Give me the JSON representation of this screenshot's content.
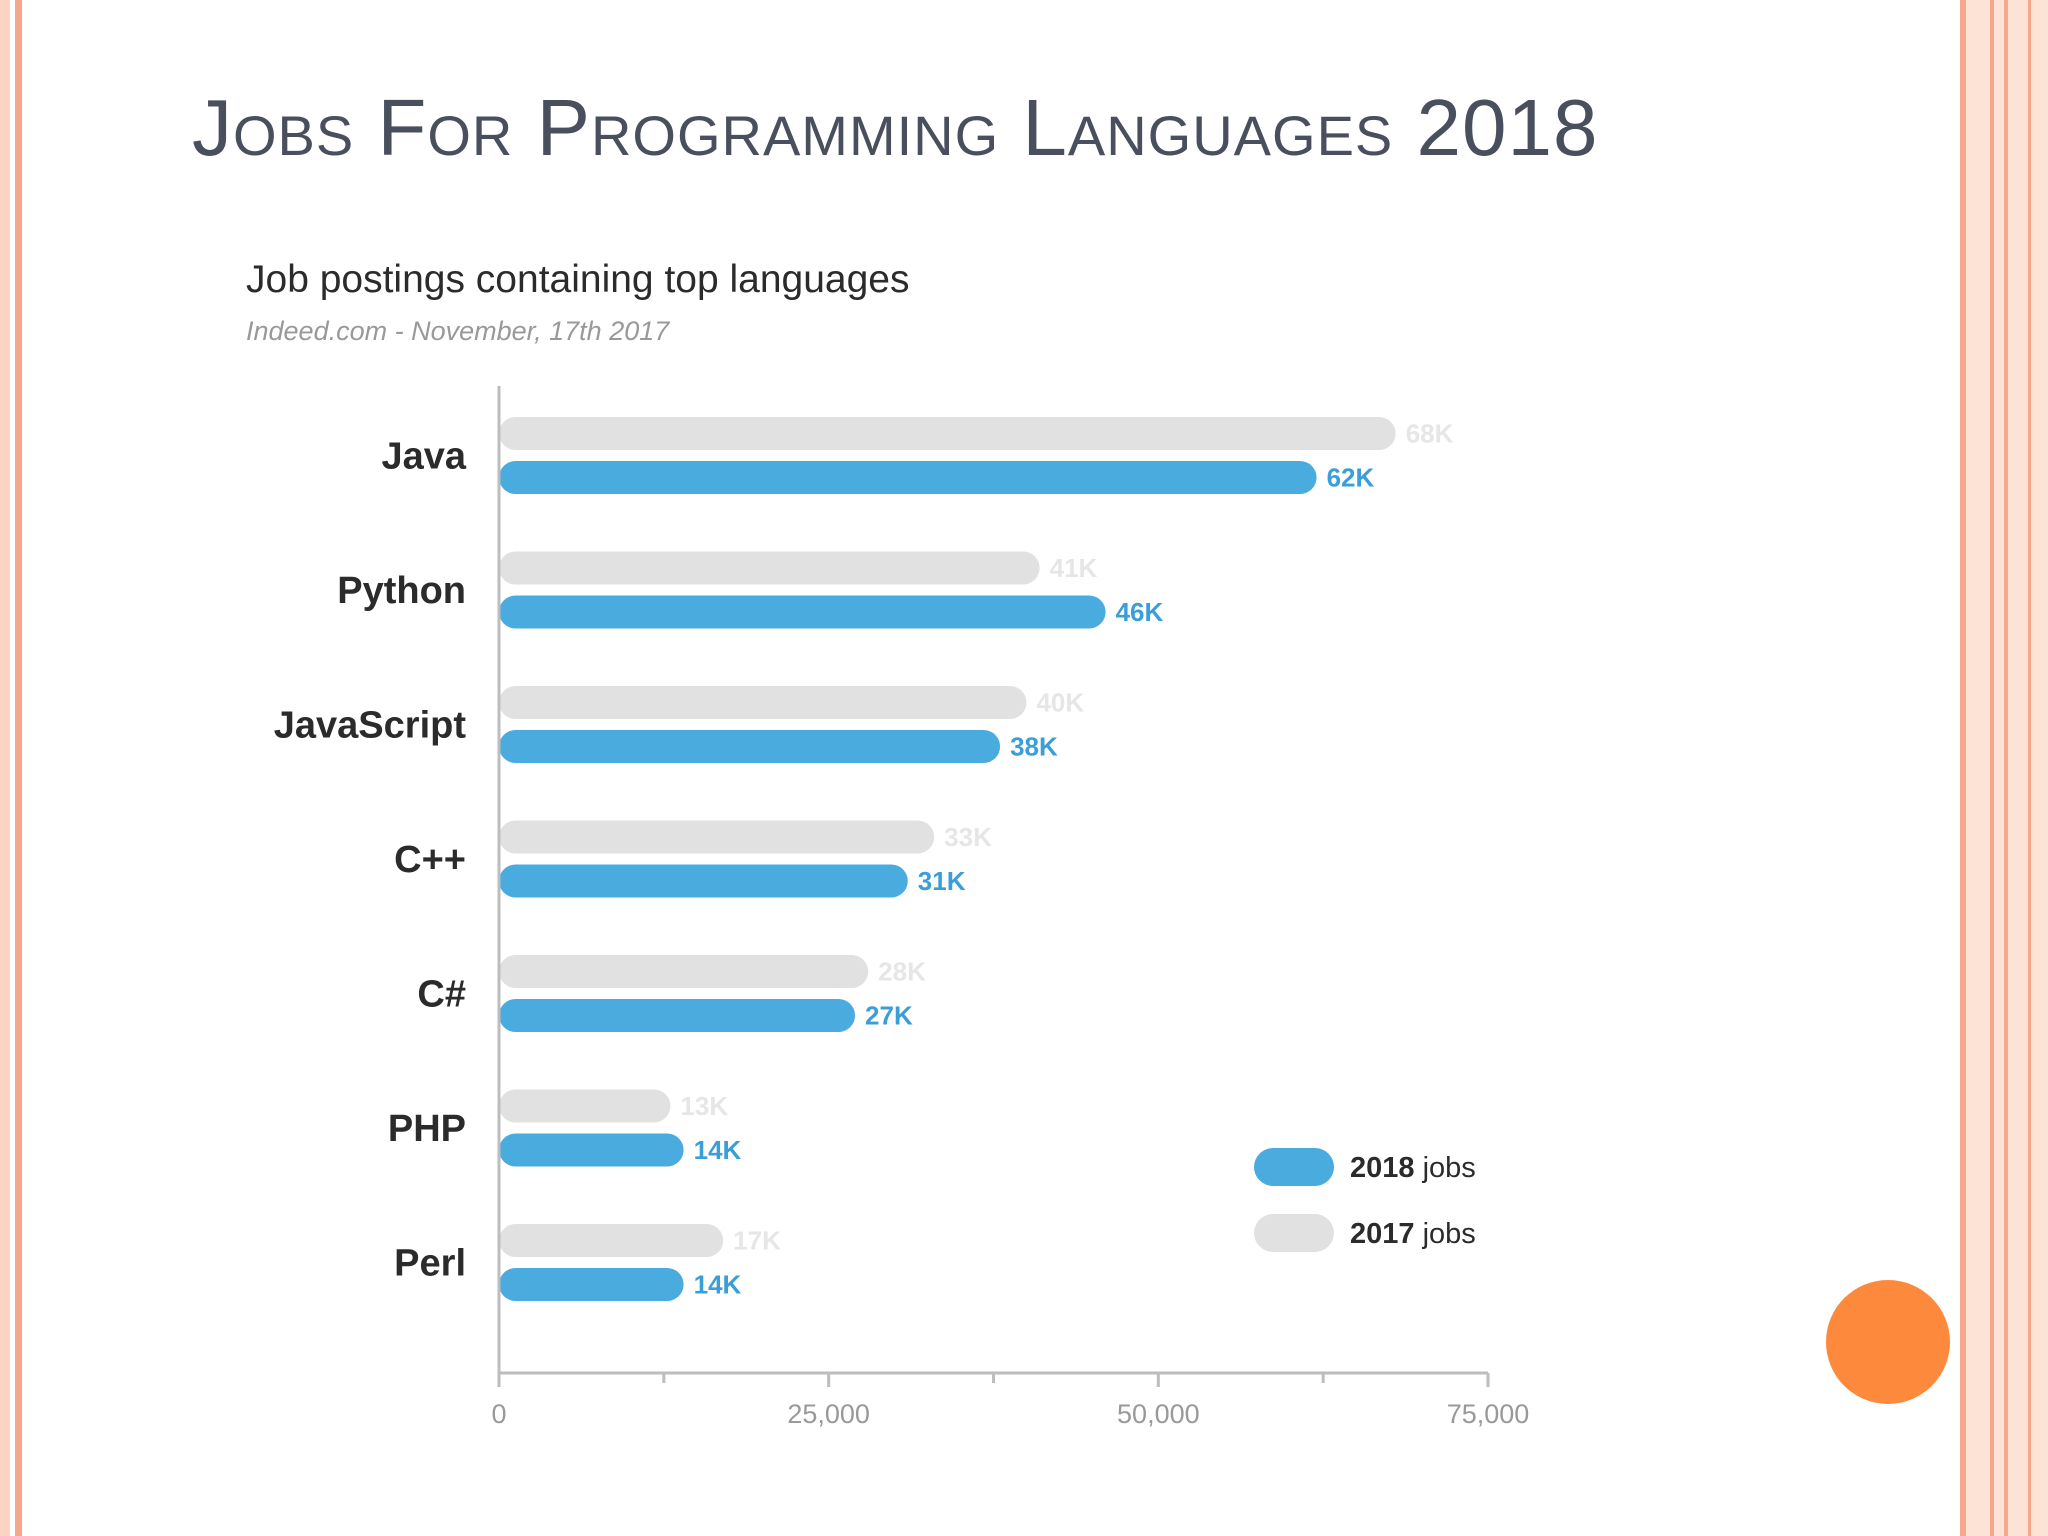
{
  "slide": {
    "title": "Jobs For Programming Languages 2018"
  },
  "chart_data": {
    "type": "bar",
    "orientation": "horizontal",
    "title": "Job postings containing top languages",
    "subtitle": "Indeed.com - November, 17th 2017",
    "categories": [
      "Java",
      "Python",
      "JavaScript",
      "C++",
      "C#",
      "PHP",
      "Perl"
    ],
    "series": [
      {
        "name": "2017 jobs",
        "year": "2017",
        "suffix": "jobs",
        "color": "#e1e1e1",
        "label_color": "#e6e6e6",
        "values": [
          68000,
          41000,
          40000,
          33000,
          28000,
          13000,
          17000
        ],
        "labels": [
          "68K",
          "41K",
          "40K",
          "33K",
          "28K",
          "13K",
          "17K"
        ]
      },
      {
        "name": "2018 jobs",
        "year": "2018",
        "suffix": "jobs",
        "color": "#4aabdf",
        "label_color": "#3a9fd8",
        "values": [
          62000,
          46000,
          38000,
          31000,
          27000,
          14000,
          14000
        ],
        "labels": [
          "62K",
          "46K",
          "38K",
          "31K",
          "27K",
          "14K",
          "14K"
        ]
      }
    ],
    "xlim": [
      0,
      75000
    ],
    "xticks": [
      0,
      25000,
      50000,
      75000
    ],
    "xtick_labels": [
      "0",
      "25,000",
      "50,000",
      "75,000"
    ],
    "minor_xticks": [
      12500,
      37500,
      62500
    ],
    "legend_position": "bottom-right",
    "grid": false
  }
}
